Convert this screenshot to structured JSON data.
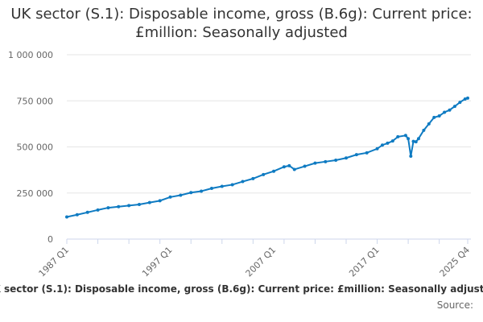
{
  "chart_data": {
    "type": "line",
    "title": "UK sector (S.1): Disposable income, gross (B.6g): Current price: £million: Seasonally adjusted",
    "xlabel": "",
    "ylabel": "",
    "ylim": [
      0,
      1000000
    ],
    "y_ticks": [
      "0",
      "250 000",
      "500 000",
      "750 000",
      "1 000 000"
    ],
    "y_tick_values": [
      0,
      250000,
      500000,
      750000,
      1000000
    ],
    "x_ticks": [
      "1987 Q1",
      "1997 Q1",
      "2007 Q1",
      "2017 Q1",
      "2025 Q4"
    ],
    "grid": true,
    "legend_position": "bottom",
    "color": "#0f7bc2",
    "series": [
      {
        "name": "UK sector (S.1): Disposable income, gross (B.6g): Current price: £million: Seasonally adjusted",
        "points": [
          [
            "1987 Q1",
            120000
          ],
          [
            "1988 Q1",
            132000
          ],
          [
            "1989 Q1",
            145000
          ],
          [
            "1990 Q1",
            158000
          ],
          [
            "1991 Q1",
            170000
          ],
          [
            "1992 Q1",
            176000
          ],
          [
            "1993 Q1",
            182000
          ],
          [
            "1994 Q1",
            188000
          ],
          [
            "1995 Q1",
            198000
          ],
          [
            "1996 Q1",
            208000
          ],
          [
            "1997 Q1",
            228000
          ],
          [
            "1998 Q1",
            238000
          ],
          [
            "1999 Q1",
            252000
          ],
          [
            "2000 Q1",
            260000
          ],
          [
            "2001 Q1",
            275000
          ],
          [
            "2002 Q1",
            286000
          ],
          [
            "2003 Q1",
            295000
          ],
          [
            "2004 Q1",
            312000
          ],
          [
            "2005 Q1",
            328000
          ],
          [
            "2006 Q1",
            350000
          ],
          [
            "2007 Q1",
            368000
          ],
          [
            "2008 Q1",
            392000
          ],
          [
            "2008 Q3",
            398000
          ],
          [
            "2009 Q1",
            378000
          ],
          [
            "2010 Q1",
            395000
          ],
          [
            "2011 Q1",
            412000
          ],
          [
            "2012 Q1",
            420000
          ],
          [
            "2013 Q1",
            428000
          ],
          [
            "2014 Q1",
            440000
          ],
          [
            "2015 Q1",
            458000
          ],
          [
            "2016 Q1",
            468000
          ],
          [
            "2017 Q1",
            490000
          ],
          [
            "2017 Q3",
            510000
          ],
          [
            "2018 Q1",
            520000
          ],
          [
            "2018 Q3",
            532000
          ],
          [
            "2019 Q1",
            555000
          ],
          [
            "2019 Q4",
            562000
          ],
          [
            "2020 Q1",
            545000
          ],
          [
            "2020 Q2",
            450000
          ],
          [
            "2020 Q3",
            530000
          ],
          [
            "2020 Q4",
            528000
          ],
          [
            "2021 Q1",
            545000
          ],
          [
            "2021 Q3",
            590000
          ],
          [
            "2022 Q1",
            625000
          ],
          [
            "2022 Q3",
            660000
          ],
          [
            "2023 Q1",
            668000
          ],
          [
            "2023 Q3",
            688000
          ],
          [
            "2024 Q1",
            700000
          ],
          [
            "2024 Q3",
            720000
          ],
          [
            "2025 Q1",
            742000
          ],
          [
            "2025 Q3",
            760000
          ],
          [
            "2025 Q4",
            765000
          ]
        ]
      }
    ],
    "source_label": "Source:"
  }
}
